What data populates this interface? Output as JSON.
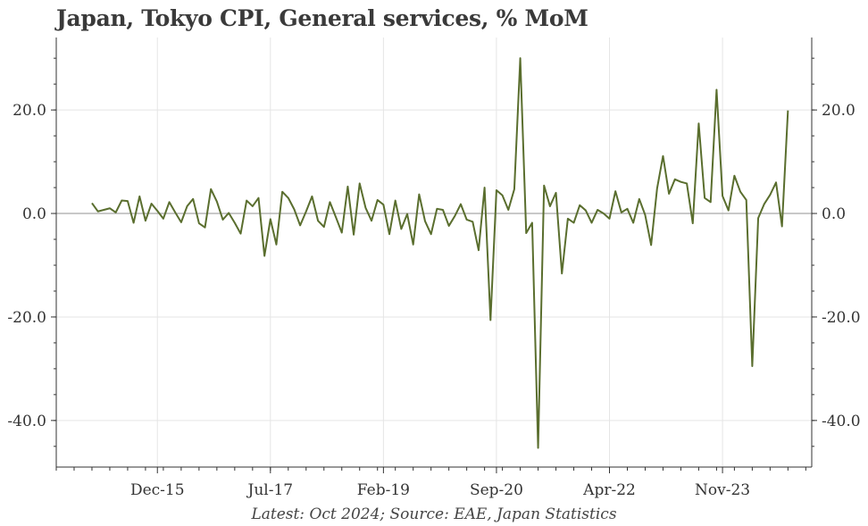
{
  "title": "Japan, Tokyo CPI, General services, % MoM",
  "footer": "Latest: Oct 2024; Source: EAE, Japan Statistics",
  "colors": {
    "line": "#5a6e2e",
    "zero_line": "#a8a8a8",
    "grid": "#e5e5e5",
    "axis": "#333333"
  },
  "chart_data": {
    "type": "line",
    "title": "Japan, Tokyo CPI, General services, % MoM",
    "xlabel": "",
    "ylabel": "",
    "ylim": [
      -49,
      34
    ],
    "xlim": [
      "2014-07",
      "2025-02"
    ],
    "y_ticks": [
      -40,
      -20,
      0,
      20
    ],
    "y_tick_labels": [
      "-40.0",
      "-20.0",
      "0.0",
      "20.0"
    ],
    "x_ticks": [
      "2015-12",
      "2017-07",
      "2019-02",
      "2020-09",
      "2022-04",
      "2023-11"
    ],
    "x_tick_labels": [
      "Dec-15",
      "Jul-17",
      "Feb-19",
      "Sep-20",
      "Apr-22",
      "Nov-23"
    ],
    "grid": true,
    "secondary_y_axis": true,
    "series": [
      {
        "name": "",
        "start": "2015-01",
        "frequency": "monthly",
        "values": [
          2.0,
          0.4,
          0.7,
          1.0,
          0.2,
          2.5,
          2.4,
          -1.8,
          3.3,
          -1.4,
          1.9,
          0.5,
          -1.0,
          2.2,
          0.2,
          -1.7,
          1.4,
          2.8,
          -1.9,
          -2.7,
          4.7,
          2.3,
          -1.2,
          0.1,
          -1.8,
          -3.9,
          2.5,
          1.4,
          3.0,
          -8.2,
          -1.1,
          -6.0,
          4.2,
          3.0,
          0.8,
          -2.3,
          0.4,
          3.3,
          -1.4,
          -2.6,
          2.2,
          -0.7,
          -3.7,
          5.2,
          -4.1,
          5.8,
          1.1,
          -1.4,
          2.6,
          1.7,
          -4.0,
          2.5,
          -3.0,
          -0.1,
          -6.0,
          3.7,
          -1.5,
          -4.0,
          0.9,
          0.7,
          -2.4,
          -0.5,
          1.8,
          -1.2,
          -1.6,
          -7.1,
          5.0,
          -20.6,
          4.5,
          3.5,
          0.7,
          4.7,
          30.0,
          -3.8,
          -1.8,
          -45.3,
          5.4,
          1.4,
          4.0,
          -11.6,
          -1.0,
          -1.8,
          1.6,
          0.6,
          -1.8,
          0.7,
          0.0,
          -1.0,
          4.3,
          0.2,
          0.9,
          -1.8,
          2.8,
          -0.3,
          -6.1,
          4.8,
          11.1,
          3.8,
          6.6,
          6.1,
          5.8,
          -1.9,
          17.4,
          3.0,
          2.2,
          23.9,
          3.4,
          0.6,
          7.3,
          4.2,
          2.6,
          -29.5,
          -0.9,
          1.8,
          3.6,
          6.0,
          -2.5,
          19.9
        ]
      }
    ]
  }
}
